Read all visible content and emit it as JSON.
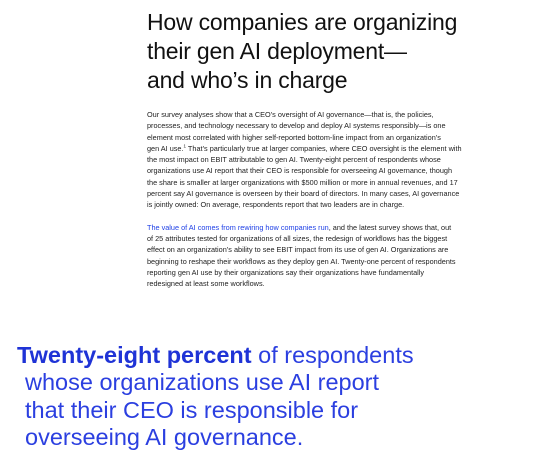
{
  "title": {
    "line1": "How companies are organizing",
    "line2": "their gen AI deployment—",
    "line3": "and who’s in charge"
  },
  "para1": {
    "line1": "Our survey analyses show that a CEO’s oversight of AI governance—that is, the policies,",
    "line2": "processes, and technology necessary to develop and deploy AI systems responsibly—is one",
    "line3": "element most correlated with higher self-reported bottom-line impact from an organization’s",
    "line4_pre": "gen AI use.",
    "line4_sup": "1",
    "line4_post": " That’s particularly true at larger companies, where CEO oversight is the element with",
    "line5": "the most impact on EBIT attributable to gen AI. Twenty-eight percent of respondents whose",
    "line6": "organizations use AI report that their CEO is responsible for overseeing AI governance, though",
    "line7": "the share is smaller at larger organizations with $500 million or more in annual revenues, and 17",
    "line8": "percent say AI governance is overseen by their board of directors. In many cases, AI governance",
    "line9": "is jointly owned: On average, respondents report that two leaders are in charge."
  },
  "para2": {
    "link_text": "The value of AI comes from rewiring how companies run",
    "line1_post": ", and the latest survey shows that, out",
    "line2": "of 25 attributes tested for organizations of all sizes, the redesign of workflows has the biggest",
    "line3": "effect on an organization’s ability to see EBIT impact from its use of gen AI. Organizations are",
    "line4": "beginning to reshape their workflows as they deploy gen AI. Twenty-one percent of respondents",
    "line5": "reporting gen AI use by their organizations say their organizations have fundamentally",
    "line6": "redesigned at least some workflows."
  },
  "callout": {
    "strong": "Twenty-eight percent",
    "line1_rest": " of respondents",
    "line2": "whose organizations use AI report",
    "line3": "that their CEO is responsible for",
    "line4": "overseeing AI governance."
  },
  "colors": {
    "link": "#1f40e6",
    "callout": "#2b3fe0"
  }
}
